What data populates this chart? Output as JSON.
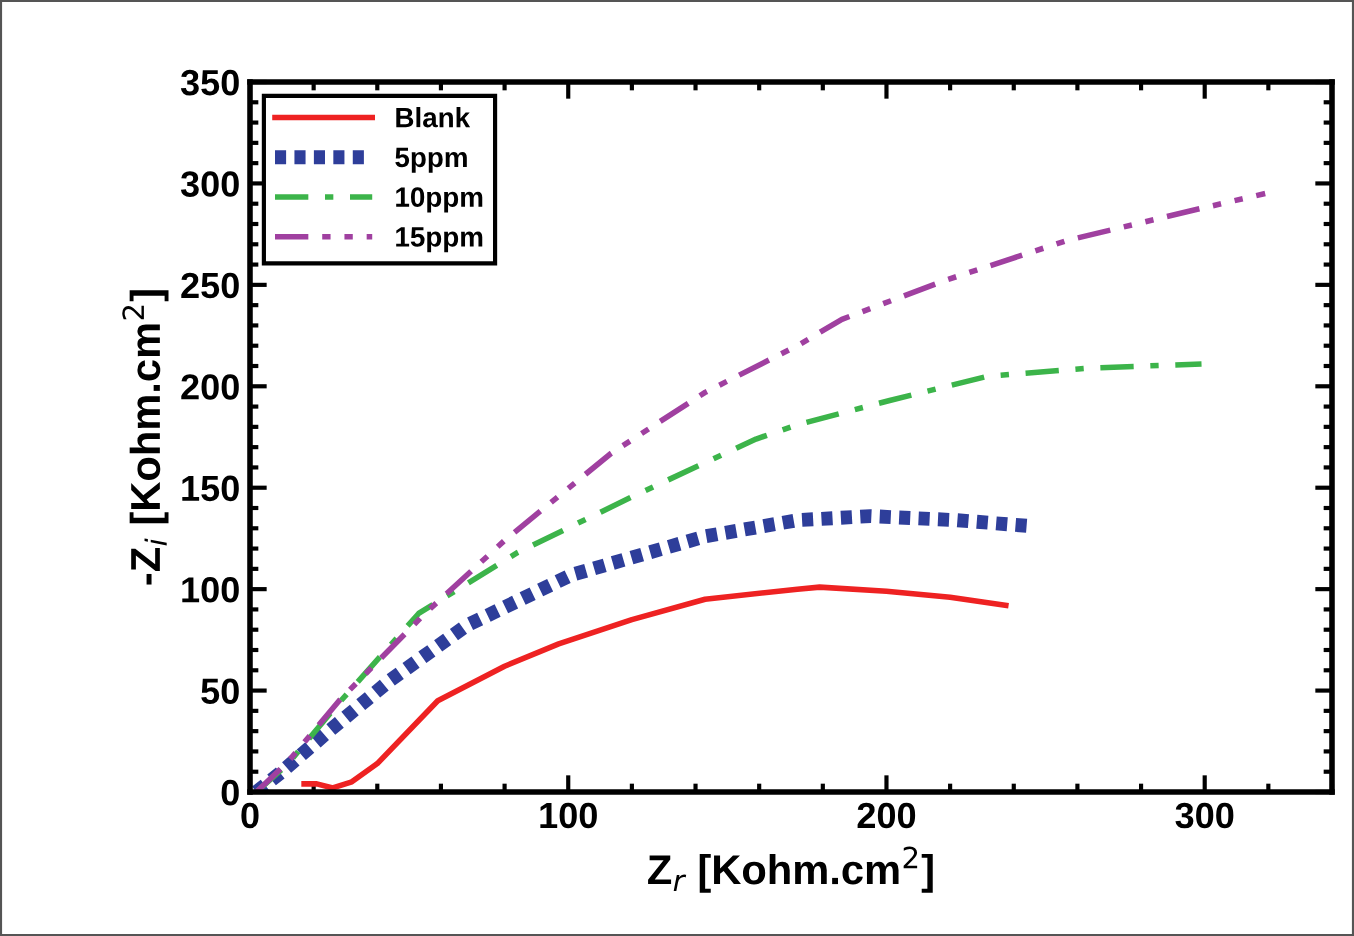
{
  "chart_data": {
    "type": "line",
    "xlabel": "Z$_{r}$ [Kohm.cm$^{2}$]",
    "ylabel": "-Z$_{i}$ [Kohm.cm$^{2}$]",
    "xlim": [
      0,
      340
    ],
    "ylim": [
      0,
      350
    ],
    "xticks": [
      0,
      100,
      200,
      300
    ],
    "yticks": [
      0,
      50,
      100,
      150,
      200,
      250,
      300,
      350
    ],
    "grid": false,
    "legend": "top left",
    "marker": "none",
    "series": [
      {
        "name": "Blank",
        "color": "#ee2222",
        "line_style": "solid",
        "x": [
          17,
          21,
          26,
          32,
          40,
          59,
          80,
          97,
          120,
          143,
          172,
          179,
          200,
          220,
          237.5
        ],
        "values": [
          4,
          4,
          2,
          5,
          14,
          45,
          62,
          73,
          85,
          95,
          100,
          101,
          99,
          96,
          92
        ]
      },
      {
        "name": "5ppm",
        "color": "#2e3e9a",
        "line_style": "dotted",
        "x": [
          2,
          10,
          24,
          44,
          68,
          101,
          143,
          172,
          195,
          222,
          246
        ],
        "values": [
          0,
          10,
          29,
          55,
          82,
          107,
          126,
          134,
          136,
          134,
          131
        ]
      },
      {
        "name": "10ppm",
        "color": "#3cb44a",
        "line_style": "dashdot",
        "x": [
          2,
          12,
          28,
          53,
          84,
          122,
          159,
          172,
          201,
          232,
          264,
          299
        ],
        "values": [
          0,
          14,
          44,
          88,
          118,
          147,
          174,
          181,
          193,
          205,
          209,
          211
        ]
      },
      {
        "name": "15ppm",
        "color": "#a040a0",
        "line_style": "dashdotdot",
        "x": [
          2,
          12,
          28,
          55,
          80,
          113.5,
          143,
          172,
          186,
          218,
          257,
          297,
          319
        ],
        "values": [
          0,
          15,
          45,
          88,
          124,
          167,
          197,
          220,
          233,
          252,
          272,
          287,
          295
        ]
      }
    ]
  }
}
